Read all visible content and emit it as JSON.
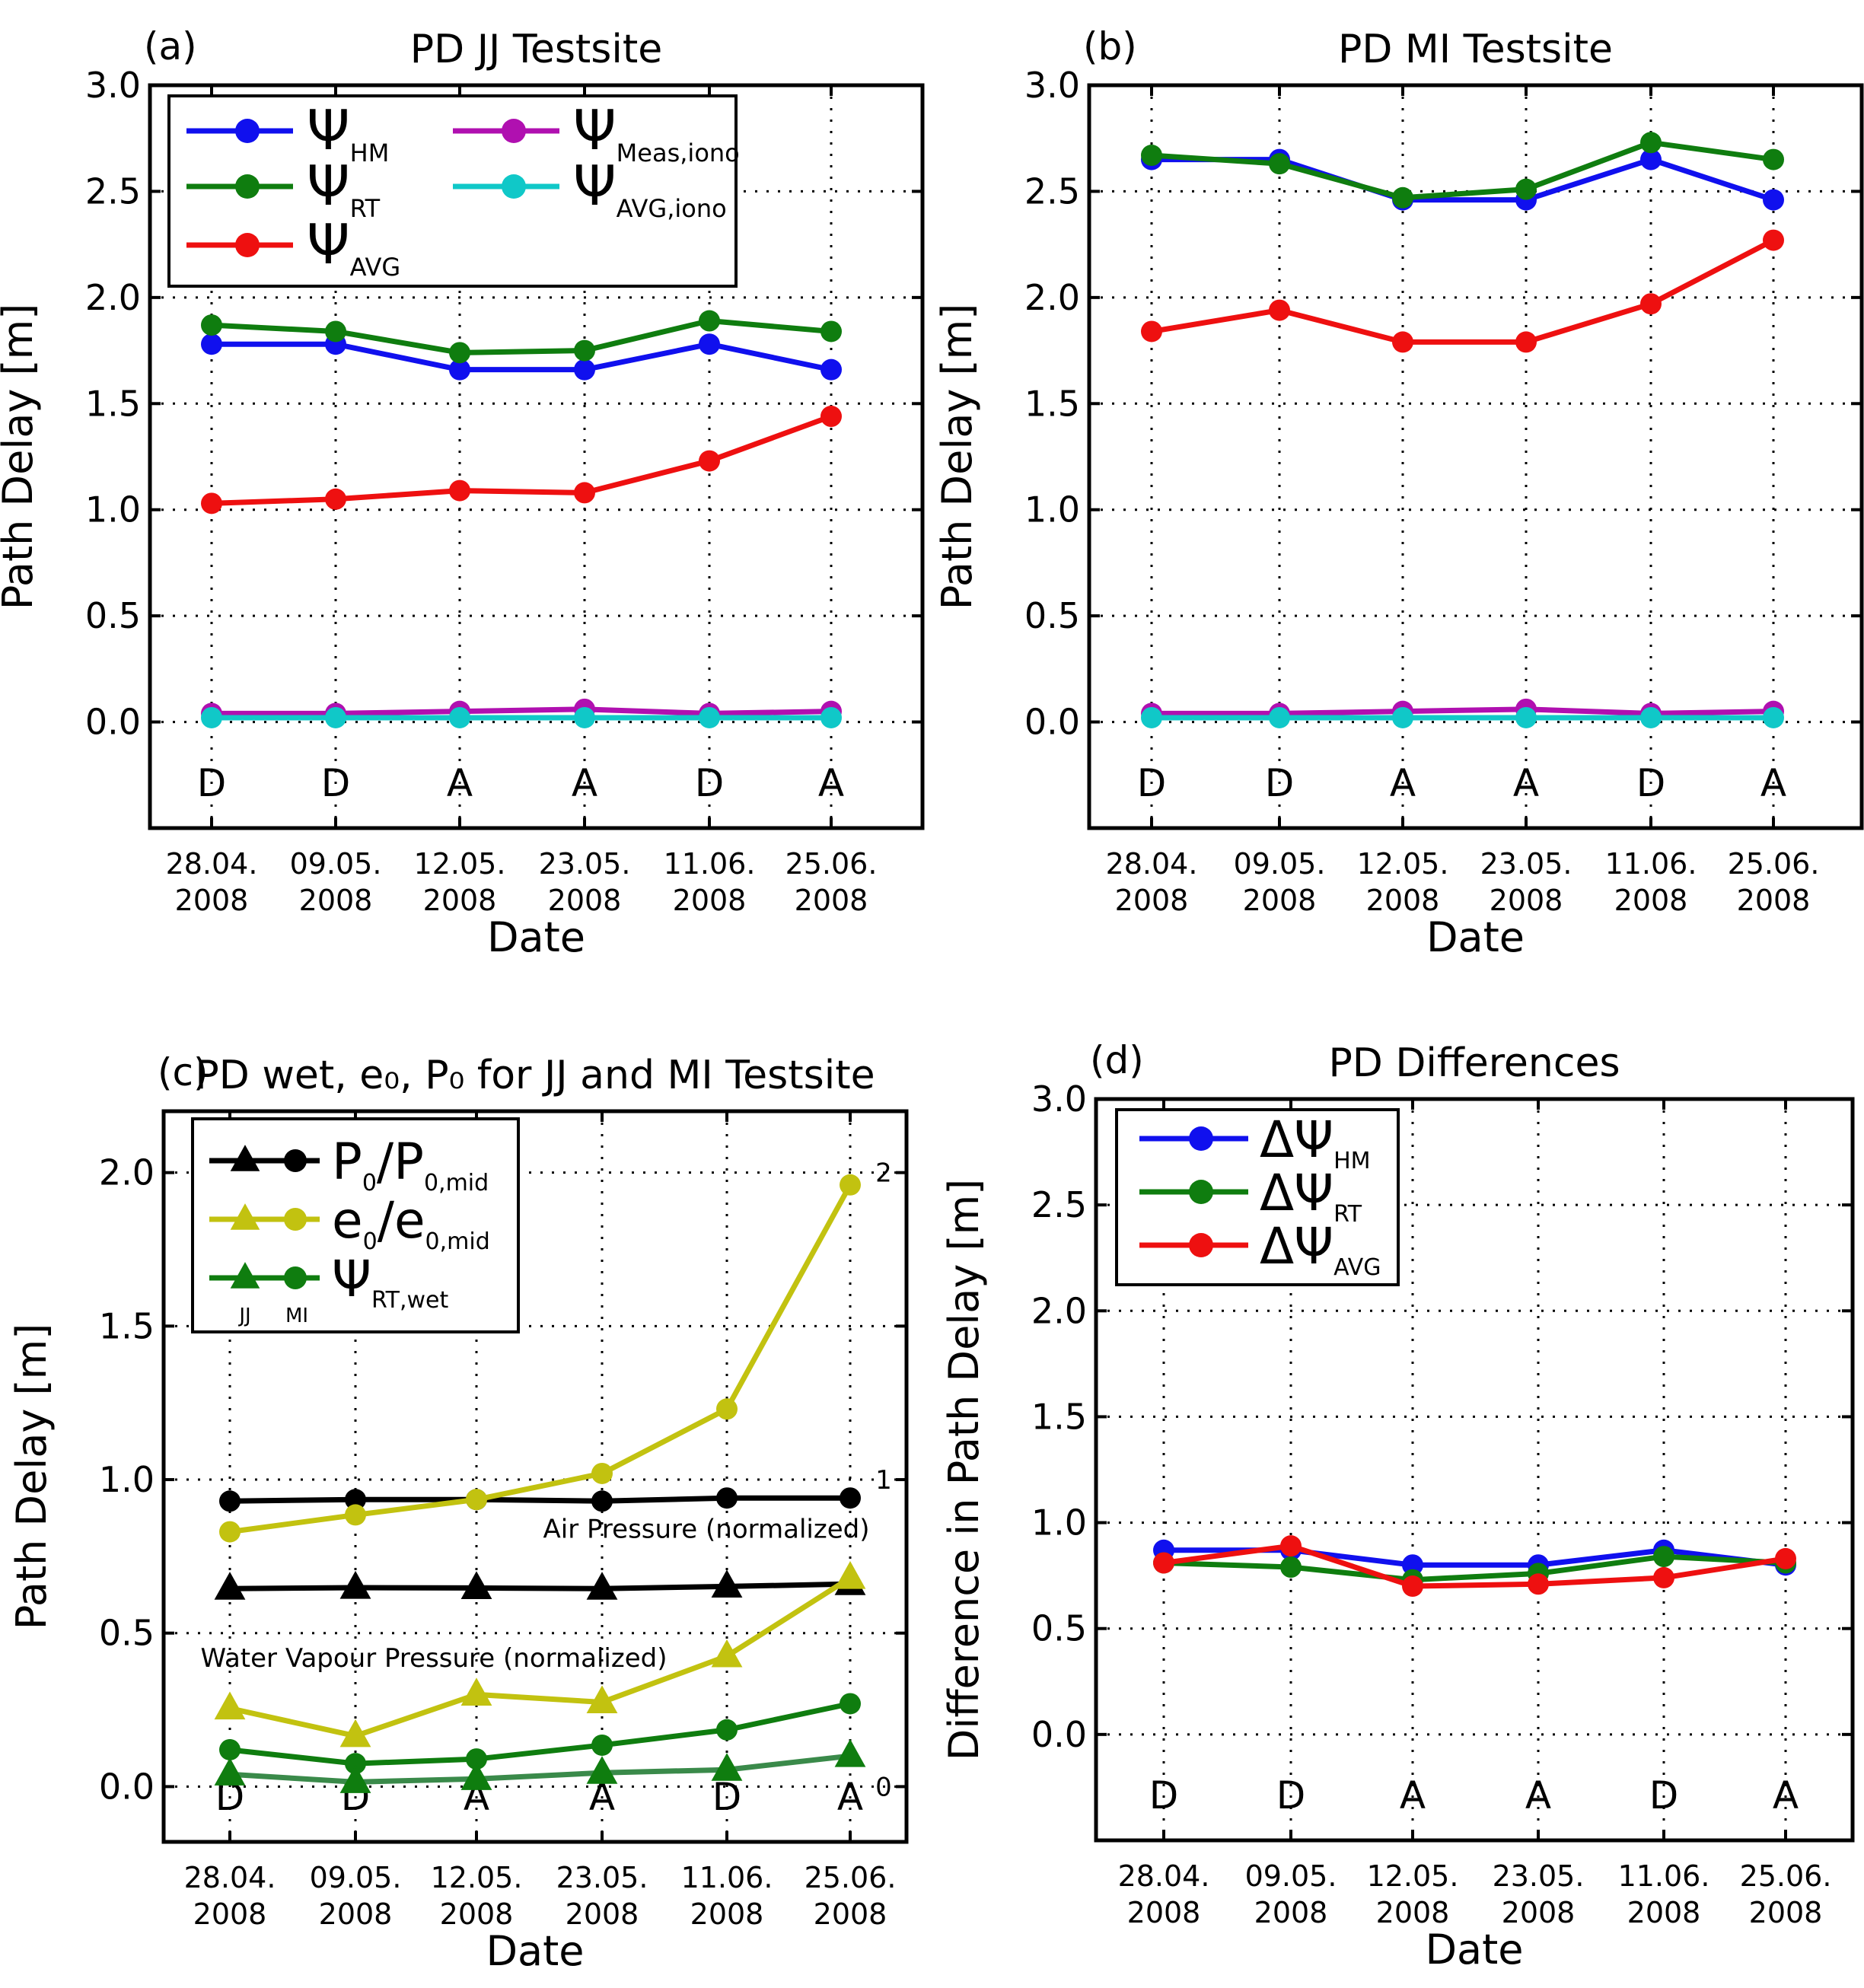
{
  "dates": [
    [
      "28.04.",
      "2008"
    ],
    [
      "09.05.",
      "2008"
    ],
    [
      "12.05.",
      "2008"
    ],
    [
      "23.05.",
      "2008"
    ],
    [
      "11.06.",
      "2008"
    ],
    [
      "25.06.",
      "2008"
    ]
  ],
  "passes": [
    "D",
    "D",
    "A",
    "A",
    "D",
    "A"
  ],
  "colors": {
    "blue": "#1010ee",
    "green": "#0f7d0f",
    "red": "#ee1010",
    "magenta": "#b010b0",
    "cyan": "#10c8c8",
    "olive": "#c2c210",
    "black": "#000000",
    "darkgreen": "#3a8a4a",
    "annot": "#22ee22"
  },
  "chart_data": [
    {
      "id": "a",
      "panel_label": "(a)",
      "title": "PD JJ Testsite",
      "type": "line",
      "xlabel": "Date",
      "ylabel": "Path Delay [m]",
      "ylim": [
        -0.5,
        3.0
      ],
      "yticks": [
        "0.0",
        "0.5",
        "1.0",
        "1.5",
        "2.0",
        "2.5",
        "3.0"
      ],
      "legend_position": "top-left",
      "series": [
        {
          "name": "Ψ_HM",
          "sym": "Ψ",
          "sub": "HM",
          "color": "#1010ee",
          "values": [
            1.78,
            1.78,
            1.66,
            1.66,
            1.78,
            1.66
          ]
        },
        {
          "name": "Ψ_RT",
          "sym": "Ψ",
          "sub": "RT",
          "color": "#0f7d0f",
          "values": [
            1.87,
            1.84,
            1.74,
            1.75,
            1.89,
            1.84
          ]
        },
        {
          "name": "Ψ_AVG",
          "sym": "Ψ",
          "sub": "AVG",
          "color": "#ee1010",
          "values": [
            1.03,
            1.05,
            1.09,
            1.08,
            1.23,
            1.44
          ]
        },
        {
          "name": "Ψ_Meas,iono",
          "sym": "Ψ",
          "sub": "Meas,iono",
          "color": "#b010b0",
          "values": [
            0.04,
            0.04,
            0.05,
            0.06,
            0.04,
            0.05
          ]
        },
        {
          "name": "Ψ_AVG,iono",
          "sym": "Ψ",
          "sub": "AVG,iono",
          "color": "#10c8c8",
          "values": [
            0.02,
            0.02,
            0.02,
            0.02,
            0.02,
            0.02
          ]
        }
      ]
    },
    {
      "id": "b",
      "panel_label": "(b)",
      "title": "PD MI Testsite",
      "type": "line",
      "xlabel": "Date",
      "ylabel": "Path Delay [m]",
      "ylim": [
        -0.5,
        3.0
      ],
      "yticks": [
        "0.0",
        "0.5",
        "1.0",
        "1.5",
        "2.0",
        "2.5",
        "3.0"
      ],
      "series": [
        {
          "name": "Ψ_HM",
          "color": "#1010ee",
          "values": [
            2.65,
            2.65,
            2.46,
            2.46,
            2.65,
            2.46
          ]
        },
        {
          "name": "Ψ_RT",
          "color": "#0f7d0f",
          "values": [
            2.67,
            2.63,
            2.47,
            2.51,
            2.73,
            2.65
          ]
        },
        {
          "name": "Ψ_AVG",
          "color": "#ee1010",
          "values": [
            1.84,
            1.94,
            1.79,
            1.79,
            1.97,
            2.27
          ]
        },
        {
          "name": "Ψ_Meas,iono",
          "color": "#b010b0",
          "values": [
            0.04,
            0.04,
            0.05,
            0.06,
            0.04,
            0.05
          ]
        },
        {
          "name": "Ψ_AVG,iono",
          "color": "#10c8c8",
          "values": [
            0.02,
            0.02,
            0.02,
            0.02,
            0.02,
            0.02
          ]
        }
      ]
    },
    {
      "id": "c",
      "panel_label": "(c)",
      "title": "PD wet, e₀, P₀ for JJ and MI Testsite",
      "type": "line",
      "xlabel": "Date",
      "ylabel": "Path Delay [m]",
      "ylim": [
        -0.18,
        2.2
      ],
      "yticks": [
        "0.0",
        "0.5",
        "1.0",
        "1.5",
        "2.0"
      ],
      "right_axis": {
        "ticks": [
          "0",
          "1",
          "2"
        ],
        "tick_values": [
          0,
          1,
          2
        ],
        "color": "#22ee22"
      },
      "annotations": [
        "Air Pressure (normalized)",
        "Water Vapour Pressure (normalized)"
      ],
      "legend_position": "top-left",
      "legend": [
        {
          "sym": "P",
          "sub": "0",
          "tail": "/P",
          "sub2": "0,mid",
          "color": "#000000"
        },
        {
          "sym": "e",
          "sub": "0",
          "tail": "/e",
          "sub2": "0,mid",
          "color": "#c2c210"
        },
        {
          "sym": "Ψ",
          "sub": "RT,wet",
          "color": "#0f7d0f",
          "jj": "JJ",
          "mi": "MI"
        }
      ],
      "series": [
        {
          "name": "P0/P0,mid MI",
          "marker": "circle",
          "color": "#000000",
          "values": [
            0.93,
            0.935,
            0.935,
            0.93,
            0.94,
            0.94
          ]
        },
        {
          "name": "P0/P0,mid JJ",
          "marker": "triangle",
          "color": "#000000",
          "values": [
            0.645,
            0.648,
            0.647,
            0.645,
            0.652,
            0.66
          ]
        },
        {
          "name": "e0/e0,mid MI",
          "marker": "circle",
          "color": "#c2c210",
          "values": [
            0.83,
            0.885,
            0.935,
            1.02,
            1.23,
            1.96
          ]
        },
        {
          "name": "e0/e0,mid JJ",
          "marker": "triangle",
          "color": "#c2c210",
          "values": [
            0.255,
            0.165,
            0.3,
            0.275,
            0.425,
            0.68
          ]
        },
        {
          "name": "Ψ_RT,wet MI",
          "marker": "circle",
          "color": "#0f7d0f",
          "line_color": "#0f7d0f",
          "values": [
            0.12,
            0.075,
            0.09,
            0.135,
            0.185,
            0.27
          ]
        },
        {
          "name": "Ψ_RT,wet JJ",
          "marker": "triangle",
          "color": "#0f7d0f",
          "line_color": "#3a8a4a",
          "values": [
            0.04,
            0.015,
            0.025,
            0.045,
            0.055,
            0.1
          ]
        }
      ]
    },
    {
      "id": "d",
      "panel_label": "(d)",
      "title": "PD Differences",
      "type": "line",
      "xlabel": "Date",
      "ylabel": "Difference in Path Delay [m]",
      "ylim": [
        -0.5,
        3.0
      ],
      "yticks": [
        "0.0",
        "0.5",
        "1.0",
        "1.5",
        "2.0",
        "2.5",
        "3.0"
      ],
      "legend_position": "top-left",
      "series": [
        {
          "name": "ΔΨ_HM",
          "sym": "ΔΨ",
          "sub": "HM",
          "color": "#1010ee",
          "values": [
            0.87,
            0.87,
            0.8,
            0.8,
            0.87,
            0.8
          ]
        },
        {
          "name": "ΔΨ_RT",
          "sym": "ΔΨ",
          "sub": "RT",
          "color": "#0f7d0f",
          "values": [
            0.81,
            0.79,
            0.73,
            0.76,
            0.84,
            0.81
          ]
        },
        {
          "name": "ΔΨ_AVG",
          "sym": "ΔΨ",
          "sub": "AVG",
          "color": "#ee1010",
          "values": [
            0.81,
            0.89,
            0.7,
            0.71,
            0.74,
            0.83
          ]
        }
      ]
    }
  ]
}
